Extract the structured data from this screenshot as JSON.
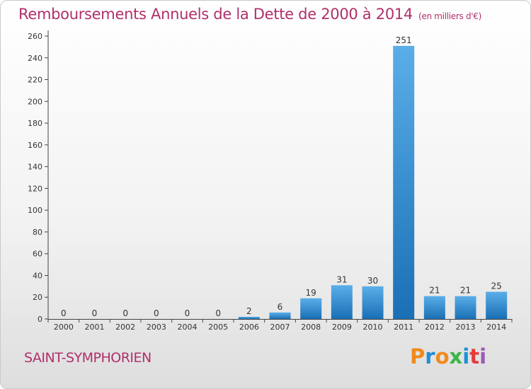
{
  "header": {
    "title": "Remboursements Annuels de la Dette de 2000 à 2014",
    "unit": "(en milliers d'€)"
  },
  "footer": {
    "commune": "SAINT-SYMPHORIEN",
    "logo": "Proxiti",
    "logo_colors": [
      "#f08a1c",
      "#1f8fd6",
      "#f08a1c",
      "#3ab54a",
      "#1f8fd6",
      "#e63b3b",
      "#9b59b6"
    ]
  },
  "colors": {
    "bar_light": "#5aaee8",
    "bar_dark": "#1a6fb5",
    "title": "#b0306a"
  },
  "chart_data": {
    "type": "bar",
    "categories": [
      "2000",
      "2001",
      "2002",
      "2003",
      "2004",
      "2005",
      "2006",
      "2007",
      "2008",
      "2009",
      "2010",
      "2011",
      "2012",
      "2013",
      "2014"
    ],
    "values": [
      0,
      0,
      0,
      0,
      0,
      0,
      2,
      6,
      19,
      31,
      30,
      251,
      21,
      21,
      25
    ],
    "ylim": [
      0,
      260
    ],
    "yticks": [
      0,
      20,
      40,
      60,
      80,
      100,
      120,
      140,
      160,
      180,
      200,
      220,
      240,
      260
    ],
    "grid": false
  }
}
